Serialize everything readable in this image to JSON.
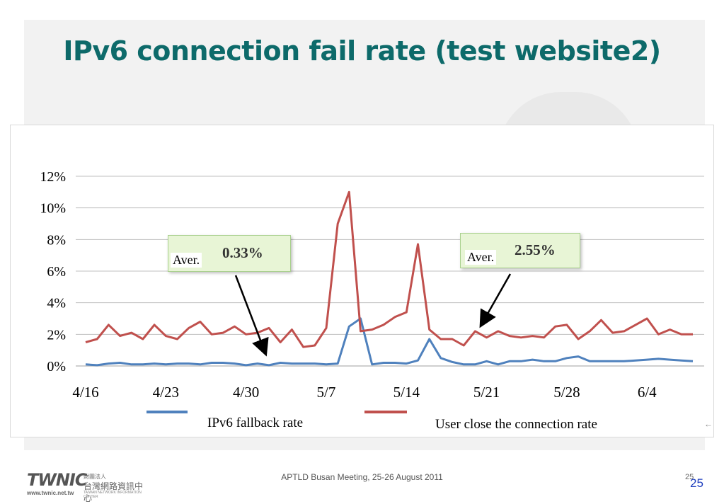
{
  "slide": {
    "title": "IPv6 connection fail rate (test website2)",
    "footer": "APTLD Busan Meeting, 25-26 August 2011",
    "page_number_small": "25",
    "page_number": "25",
    "logo": {
      "mark": "TWNIC",
      "chinese_small": "財團法人",
      "chinese_name": "台灣網路資訊中心",
      "url": "www.twnic.net.tw",
      "english_name": "TAIWAN NETWORK INFORMATION CENTER"
    }
  },
  "colors": {
    "title": "#0d6a6a",
    "fallback_series": "#4f81bd",
    "close_series": "#c0504d",
    "grid": "#bfbfbf"
  },
  "callouts": {
    "fallback": {
      "label": "Aver.",
      "value": "0.33%"
    },
    "close": {
      "label": "Aver.",
      "value": "2.55%"
    }
  },
  "chart_data": {
    "type": "line",
    "title": "",
    "xlabel": "",
    "ylabel": "",
    "ylim": [
      0,
      12
    ],
    "y_ticks": [
      "0%",
      "2%",
      "4%",
      "6%",
      "8%",
      "10%",
      "12%"
    ],
    "x_ticks": [
      "4/16",
      "4/23",
      "4/30",
      "5/7",
      "5/14",
      "5/21",
      "5/28",
      "6/4"
    ],
    "x": [
      "4/16",
      "4/17",
      "4/18",
      "4/19",
      "4/20",
      "4/21",
      "4/22",
      "4/23",
      "4/24",
      "4/25",
      "4/26",
      "4/27",
      "4/28",
      "4/29",
      "4/30",
      "5/1",
      "5/2",
      "5/3",
      "5/4",
      "5/5",
      "5/6",
      "5/7",
      "5/8",
      "5/9",
      "5/10",
      "5/11",
      "5/12",
      "5/13",
      "5/14",
      "5/15",
      "5/16",
      "5/17",
      "5/18",
      "5/19",
      "5/20",
      "5/21",
      "5/22",
      "5/23",
      "5/24",
      "5/25",
      "5/26",
      "5/27",
      "5/28",
      "5/29",
      "5/30",
      "5/31",
      "6/1",
      "6/2",
      "6/3",
      "6/4",
      "6/5",
      "6/6",
      "6/7",
      "6/8"
    ],
    "grid": true,
    "legend_position": "bottom",
    "series": [
      {
        "name": "IPv6 fallback rate",
        "values": [
          0.1,
          0.05,
          0.15,
          0.2,
          0.1,
          0.1,
          0.15,
          0.1,
          0.15,
          0.15,
          0.1,
          0.2,
          0.2,
          0.15,
          0.05,
          0.15,
          0.05,
          0.2,
          0.15,
          0.15,
          0.15,
          0.1,
          0.15,
          2.5,
          3.0,
          0.1,
          0.2,
          0.2,
          0.15,
          0.35,
          1.7,
          0.5,
          0.25,
          0.1,
          0.1,
          0.3,
          0.1,
          0.3,
          0.3,
          0.4,
          0.3,
          0.3,
          0.5,
          0.6,
          0.3,
          0.3,
          0.3,
          0.3,
          0.35,
          0.4,
          0.45,
          0.4,
          0.35,
          0.3
        ]
      },
      {
        "name": "User close the connection rate",
        "values": [
          1.5,
          1.7,
          2.6,
          1.9,
          2.1,
          1.7,
          2.6,
          1.9,
          1.7,
          2.4,
          2.8,
          2.0,
          2.1,
          2.5,
          2.0,
          2.1,
          2.4,
          1.5,
          2.3,
          1.2,
          1.3,
          2.4,
          9.0,
          11.0,
          2.2,
          2.3,
          2.6,
          3.1,
          3.4,
          7.7,
          2.3,
          1.7,
          1.7,
          1.3,
          2.2,
          1.8,
          2.2,
          1.9,
          1.8,
          1.9,
          1.8,
          2.5,
          2.6,
          1.7,
          2.2,
          2.9,
          2.1,
          2.2,
          2.6,
          3.0,
          2.0,
          2.3,
          2.0,
          2.0
        ]
      }
    ]
  }
}
